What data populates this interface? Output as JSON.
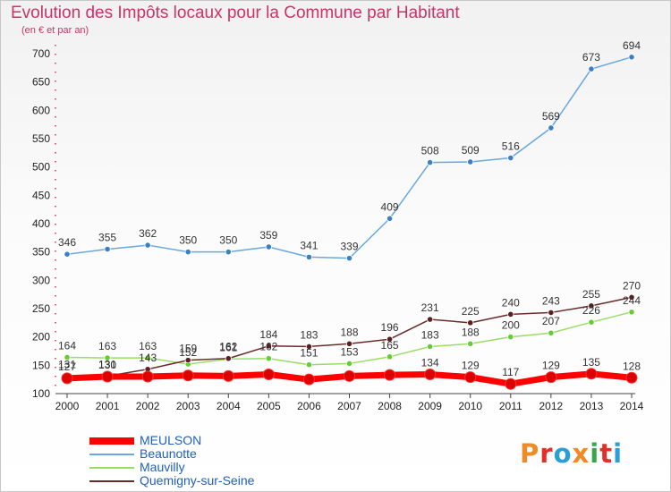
{
  "header": {
    "title": "Evolution des Impôts locaux pour la Commune par Habitant",
    "subtitle": "(en € et par an)"
  },
  "logo": {
    "text": "Proxiti",
    "colors": [
      "#f08a24",
      "#e0302a",
      "#2a9fd6",
      "#f08a24",
      "#3aa64a",
      "#e0302a",
      "#2a9fd6"
    ]
  },
  "chart_data": {
    "type": "line",
    "title": "Evolution des Impôts locaux pour la Commune par Habitant",
    "subtitle": "(en € et par an)",
    "xlabel": "",
    "ylabel": "",
    "x": [
      "2000",
      "2001",
      "2002",
      "2003",
      "2004",
      "2005",
      "2006",
      "2007",
      "2008",
      "2009",
      "2010",
      "2011",
      "2012",
      "2013",
      "2014"
    ],
    "ylim": [
      100,
      700
    ],
    "yticks": [
      100,
      150,
      200,
      250,
      300,
      350,
      400,
      450,
      500,
      550,
      600,
      650,
      700
    ],
    "grid": false,
    "legend_position": "bottom-left",
    "series": [
      {
        "name": "MEULSON",
        "color": "#ff0000",
        "marker_color": "#dd0000",
        "values": [
          127,
          130,
          130,
          132,
          131,
          134,
          125,
          131,
          133,
          134,
          129,
          117,
          129,
          135,
          128
        ],
        "labels": [
          "127",
          "130",
          "",
          "",
          "",
          "",
          "",
          "",
          "",
          "134",
          "129",
          "117",
          "129",
          "135",
          "128"
        ]
      },
      {
        "name": "Beaunotte",
        "color": "#6aa8dd",
        "marker_color": "#3b7fc4",
        "values": [
          346,
          355,
          362,
          350,
          350,
          359,
          341,
          339,
          409,
          508,
          509,
          516,
          569,
          673,
          694
        ],
        "labels": [
          "346",
          "355",
          "362",
          "350",
          "350",
          "359",
          "341",
          "339",
          "409",
          "508",
          "509",
          "516",
          "569",
          "673",
          "694"
        ]
      },
      {
        "name": "Mauvilly",
        "color": "#99dd66",
        "marker_color": "#66cc33",
        "values": [
          164,
          163,
          163,
          152,
          161,
          162,
          151,
          153,
          165,
          183,
          188,
          200,
          207,
          226,
          244
        ],
        "labels": [
          "164",
          "163",
          "163",
          "152",
          "161",
          "162",
          "151",
          "153",
          "165",
          "183",
          "188",
          "200",
          "207",
          "226",
          "244"
        ]
      },
      {
        "name": "Quemigny-sur-Seine",
        "color": "#6b2a2a",
        "marker_color": "#5a1f1f",
        "values": [
          131,
          131,
          143,
          159,
          162,
          184,
          183,
          188,
          196,
          231,
          225,
          240,
          243,
          255,
          270
        ],
        "labels": [
          "131",
          "131",
          "143",
          "159",
          "162",
          "184",
          "183",
          "188",
          "196",
          "231",
          "225",
          "240",
          "243",
          "255",
          "270"
        ]
      }
    ]
  }
}
